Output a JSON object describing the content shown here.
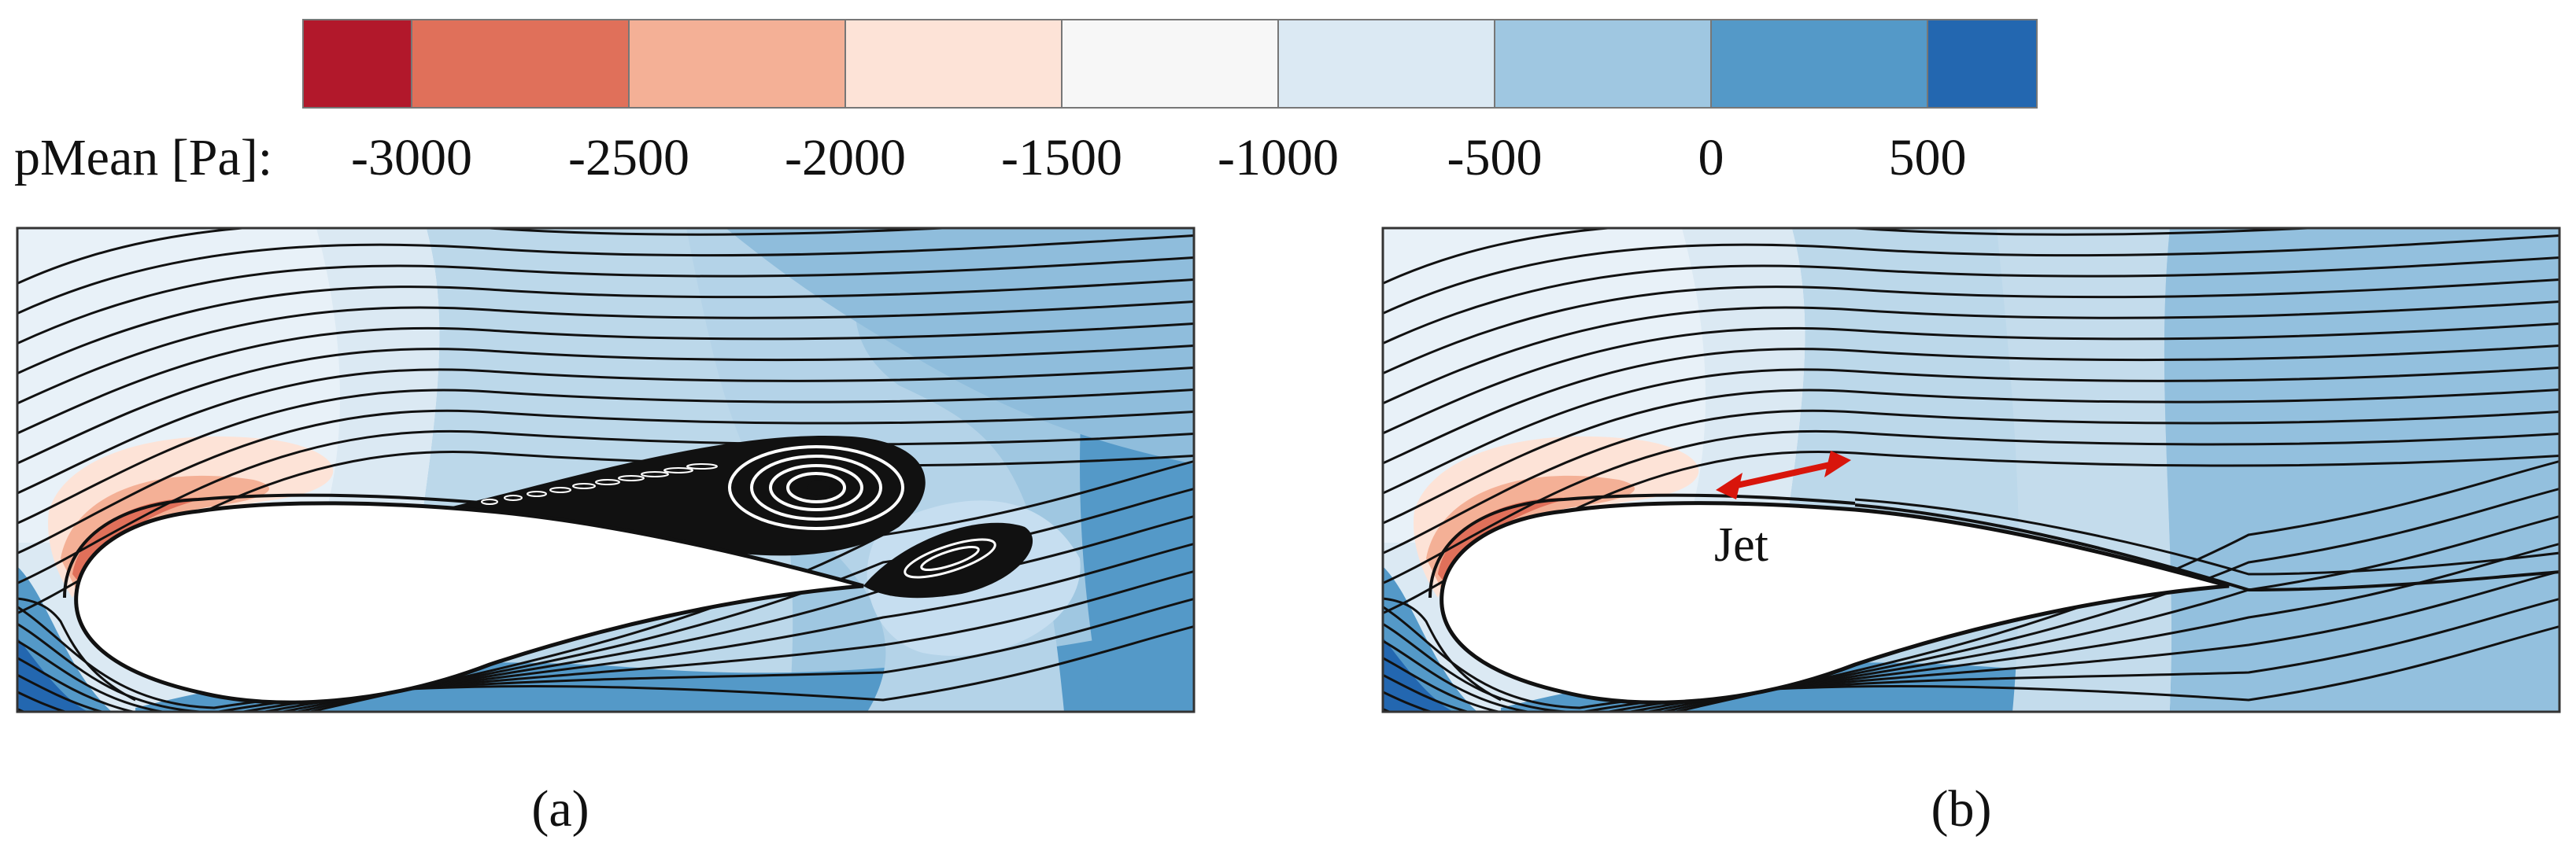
{
  "colorbar": {
    "title": "pMean [Pa]:",
    "ticks": [
      "-3000",
      "-2500",
      "-2000",
      "-1500",
      "-1000",
      "-500",
      "0",
      "500"
    ],
    "colors": [
      "#b2182b",
      "#e0705a",
      "#f4b096",
      "#fde3d7",
      "#f7f7f7",
      "#dbe9f3",
      "#9fc7e1",
      "#5499c8",
      "#2367b0"
    ]
  },
  "panels": [
    {
      "label": "(a)",
      "flow": "separated",
      "separation_bubble": true
    },
    {
      "label": "(b)",
      "flow": "attached",
      "annotation": "Jet",
      "annotation_color": "#d8150b"
    }
  ],
  "field_colors": {
    "far": "#9fc7e1",
    "mid": "#bcd8ea",
    "light": "#dbe9f3",
    "suction": "#fde3d7",
    "suction_strong": "#e0705a",
    "high": "#5499c8",
    "stagnation": "#2367b0",
    "streamline": "#111111"
  }
}
